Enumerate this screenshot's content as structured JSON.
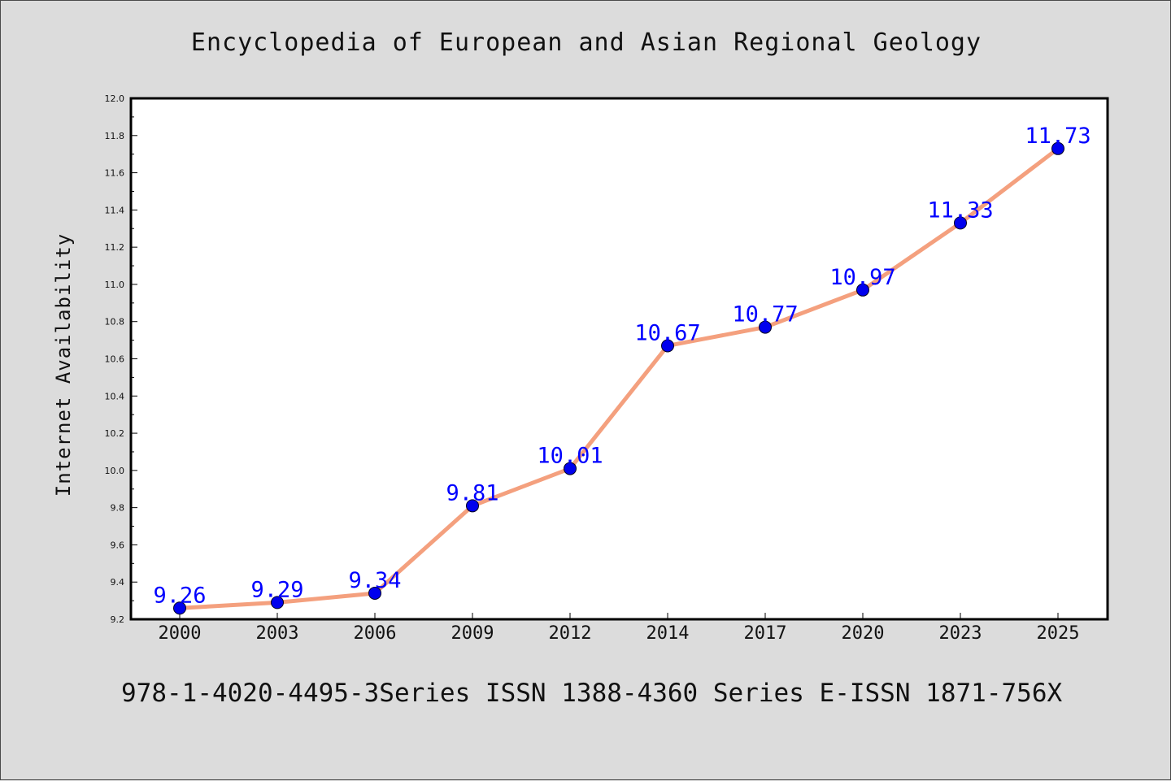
{
  "title": "Encyclopedia of European and Asian Regional Geology",
  "footer": "978-1-4020-4495-3Series ISSN 1388-4360 Series E-ISSN 1871-756X",
  "colors": {
    "background": "#dcdcdc",
    "plot_background": "#ffffff",
    "line": "#f4a07e",
    "marker": "#0000ee",
    "data_label": "#0000ff"
  },
  "chart_data": {
    "type": "line",
    "title": "Encyclopedia of European and Asian Regional Geology",
    "xlabel": "",
    "ylabel": "Internet Availability",
    "categories": [
      "2000",
      "2003",
      "2006",
      "2009",
      "2012",
      "2014",
      "2017",
      "2020",
      "2023",
      "2025"
    ],
    "series": [
      {
        "values": [
          9.26,
          9.29,
          9.34,
          9.81,
          10.01,
          10.67,
          10.77,
          10.97,
          11.33,
          11.73
        ],
        "labels": [
          "9.26",
          "9.29",
          "9.34",
          "9.81",
          "10.01",
          "10.67",
          "10.77",
          "10.97",
          "11.33",
          "11.73"
        ]
      }
    ],
    "ylim": [
      9.2,
      12.0
    ],
    "yticks": [
      "9.2",
      "9.4",
      "9.6",
      "9.8",
      "10.0",
      "10.2",
      "10.4",
      "10.6",
      "10.8",
      "11.0",
      "11.2",
      "11.4",
      "11.6",
      "11.8",
      "12.0"
    ],
    "grid": false,
    "legend": "none"
  }
}
